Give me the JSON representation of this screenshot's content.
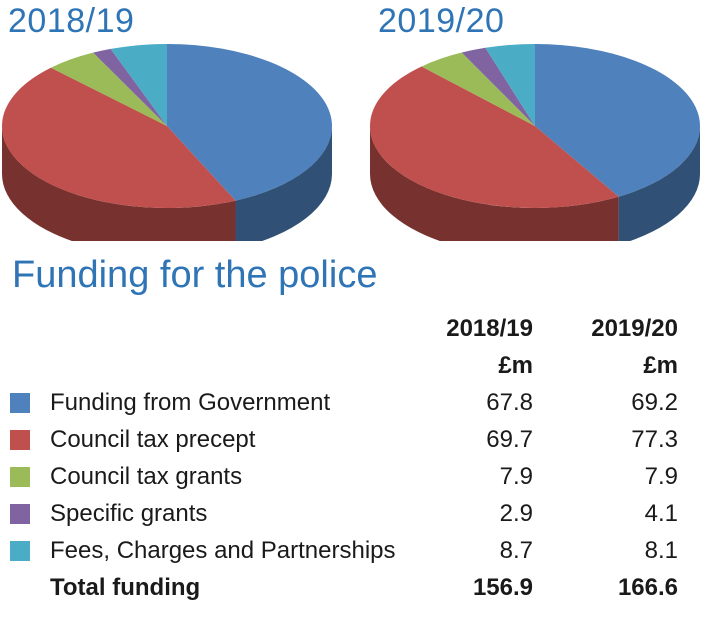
{
  "chart_data": {
    "type": "pie",
    "title": "Funding for the police",
    "unit": "£m",
    "categories": [
      "Funding from Government",
      "Council tax precept",
      "Council tax grants",
      "Specific grants",
      "Fees, Charges and Partnerships"
    ],
    "colors": [
      "#4f81bd",
      "#c0504d",
      "#9bbb59",
      "#8064a2",
      "#4bacc6"
    ],
    "series": [
      {
        "name": "2018/19",
        "values": [
          67.8,
          69.7,
          7.9,
          2.9,
          8.7
        ],
        "total": 156.9
      },
      {
        "name": "2019/20",
        "values": [
          69.2,
          77.3,
          7.9,
          4.1,
          8.1
        ],
        "total": 166.6
      }
    ]
  },
  "table": {
    "header_years": [
      "2018/19",
      "2019/20"
    ],
    "unit_label": "£m",
    "total_label": "Total funding",
    "totals": [
      "156.9",
      "166.6"
    ]
  }
}
